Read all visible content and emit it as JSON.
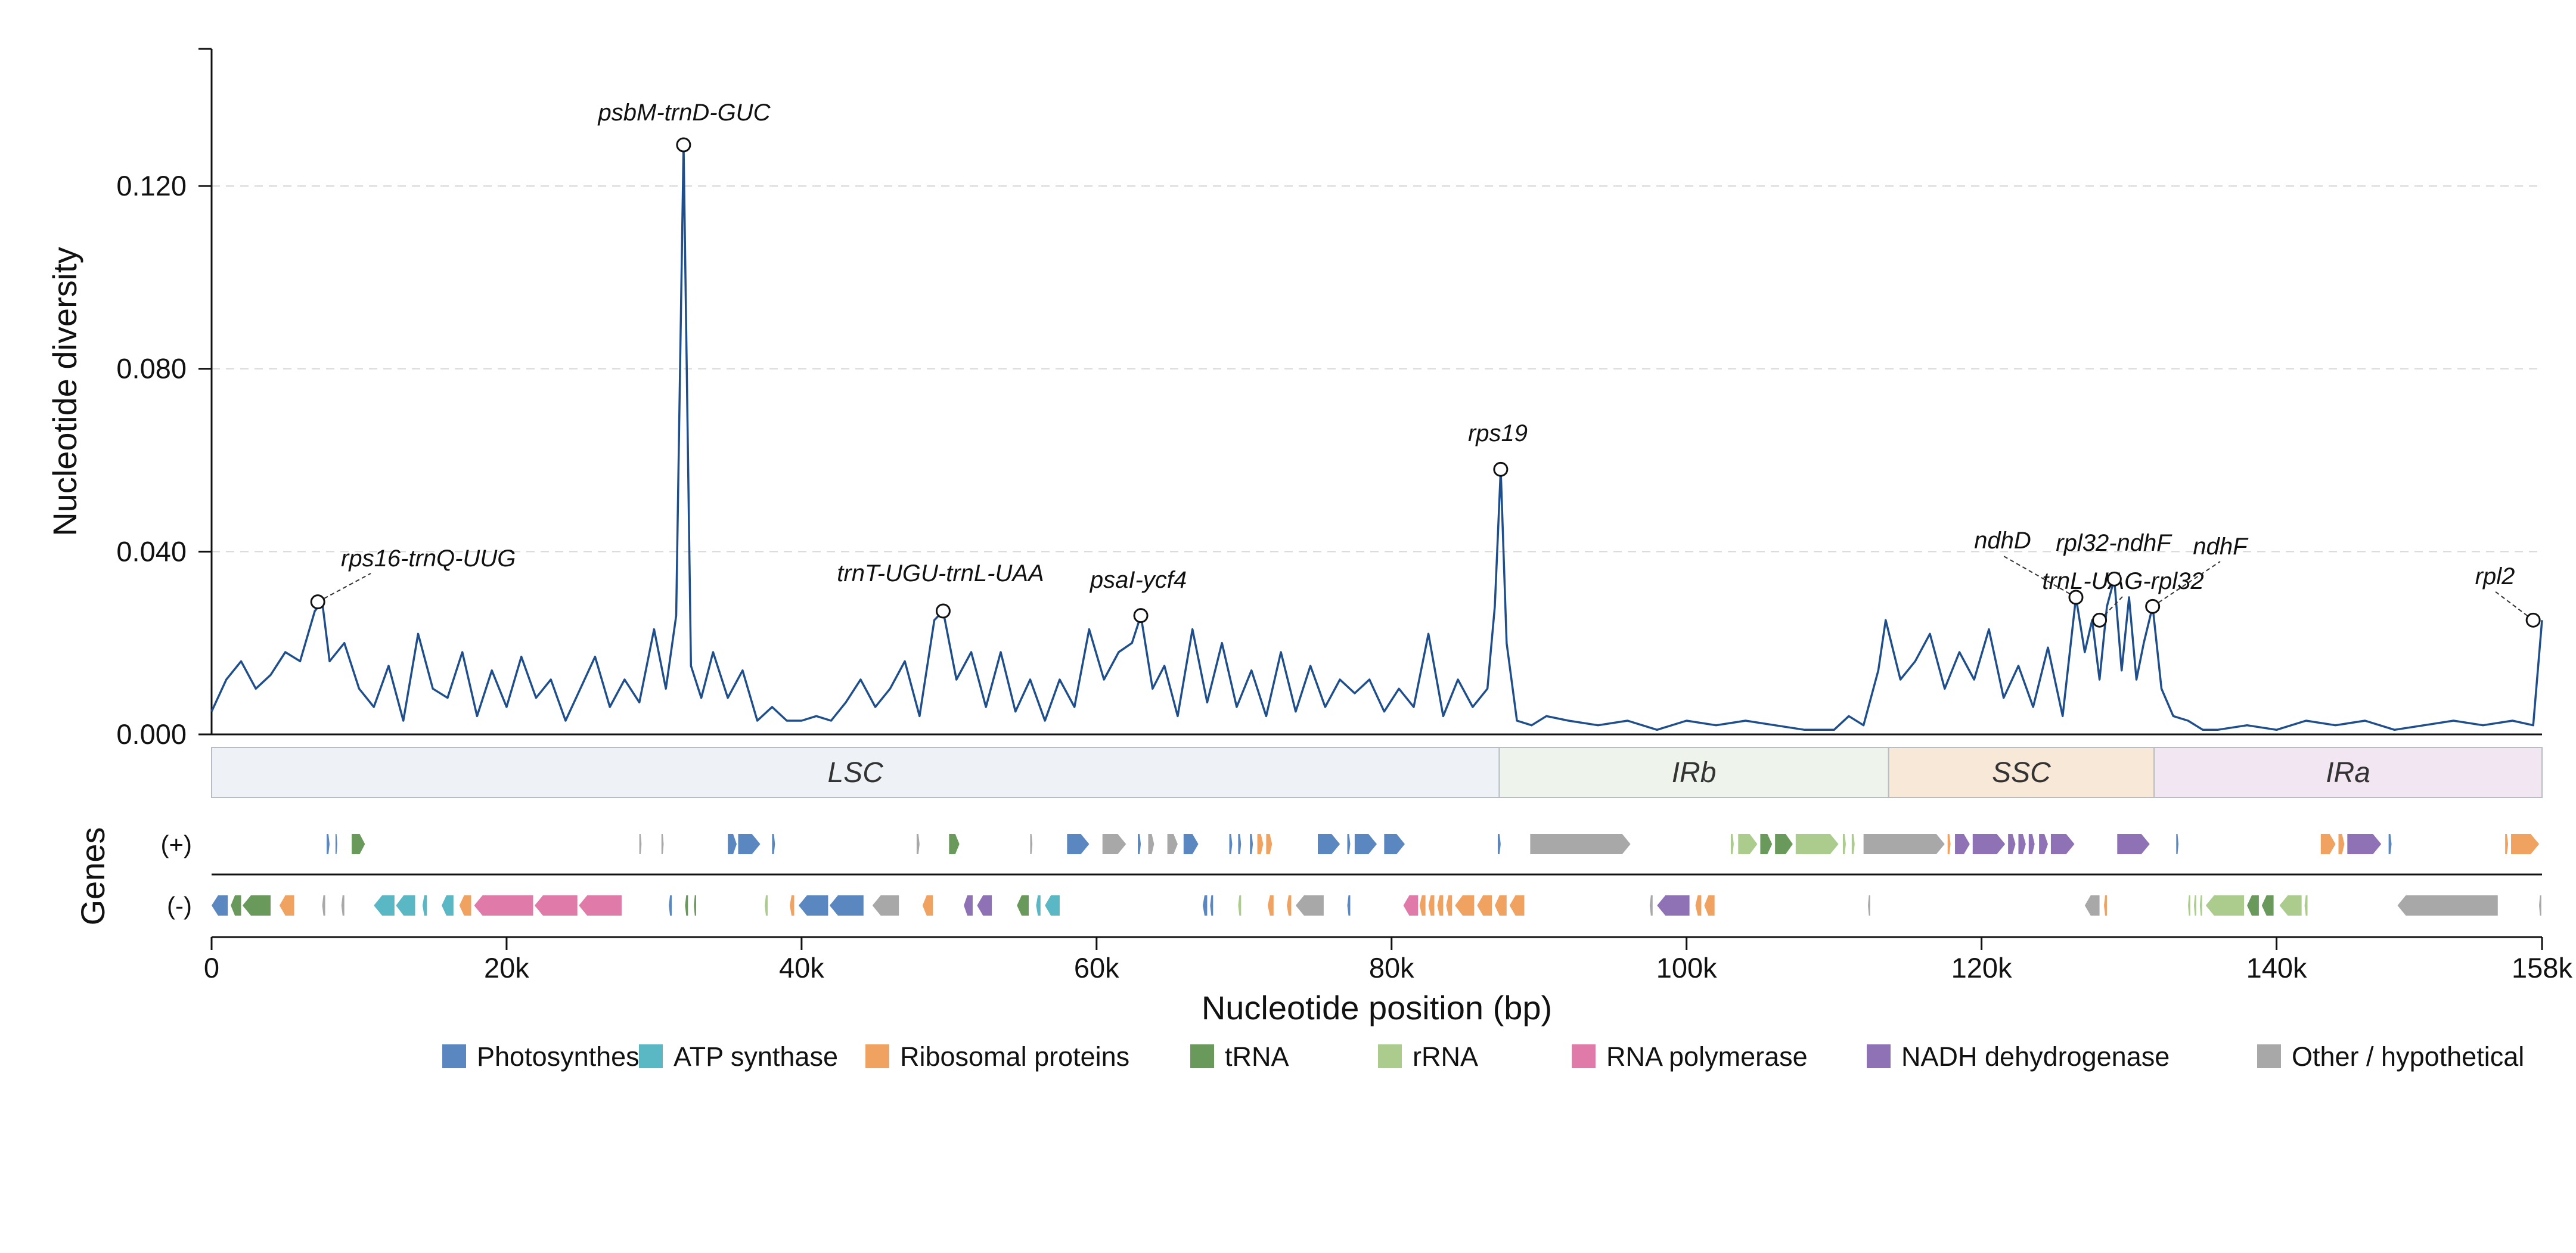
{
  "chart_data": {
    "type": "line",
    "xlabel": "Nucleotide position (bp)",
    "ylabel": "Nucleotide diversity",
    "genes_label": "Genes",
    "xlim": [
      0,
      158000
    ],
    "ylim": [
      0,
      0.15
    ],
    "y_ticks": [
      {
        "value": 0.0,
        "label": "0.000"
      },
      {
        "value": 0.04,
        "label": "0.040"
      },
      {
        "value": 0.08,
        "label": "0.080"
      },
      {
        "value": 0.12,
        "label": "0.120"
      }
    ],
    "x_ticks": [
      {
        "value": 0,
        "label": "0"
      },
      {
        "value": 20000,
        "label": "20k"
      },
      {
        "value": 40000,
        "label": "40k"
      },
      {
        "value": 60000,
        "label": "60k"
      },
      {
        "value": 80000,
        "label": "80k"
      },
      {
        "value": 100000,
        "label": "100k"
      },
      {
        "value": 120000,
        "label": "120k"
      },
      {
        "value": 140000,
        "label": "140k"
      },
      {
        "value": 158000,
        "label": "158k"
      }
    ],
    "grid": "horizontal-dashed",
    "line_color": "#1f4e8c",
    "series": [
      {
        "x": [
          0,
          1000,
          2000,
          3000,
          4000,
          5000,
          6000,
          7000,
          7500,
          8000,
          9000,
          10000,
          11000,
          12000,
          13000,
          14000,
          15000,
          16000,
          17000,
          18000,
          19000,
          20000,
          21000,
          22000,
          23000,
          24000,
          25000,
          26000,
          27000,
          28000,
          29000,
          30000,
          30800,
          31500,
          32000,
          32500,
          33200,
          34000,
          35000,
          36000,
          37000,
          38000,
          39000,
          40000,
          41000,
          42000,
          43000,
          44000,
          45000,
          46000,
          47000,
          48000,
          49000,
          49600,
          50500,
          51500,
          52500,
          53500,
          54500,
          55500,
          56500,
          57500,
          58500,
          59500,
          60500,
          61500,
          62400,
          63000,
          63800,
          64600,
          65500,
          66500,
          67500,
          68500,
          69500,
          70500,
          71500,
          72500,
          73500,
          74500,
          75500,
          76500,
          77500,
          78500,
          79500,
          80500,
          81500,
          82500,
          83500,
          84500,
          85500,
          86500,
          87000,
          87400,
          87800,
          88500,
          89500,
          90500,
          92000,
          94000,
          96000,
          98000,
          100000,
          102000,
          104000,
          106000,
          108000,
          110000,
          111000,
          112000,
          113000,
          113500,
          114500,
          115500,
          116500,
          117500,
          118500,
          119500,
          120500,
          121500,
          122500,
          123500,
          124500,
          125500,
          126400,
          127000,
          127500,
          128000,
          128500,
          129000,
          129500,
          130000,
          130500,
          131000,
          131600,
          132200,
          133000,
          134000,
          135000,
          136000,
          138000,
          140000,
          142000,
          144000,
          146000,
          148000,
          150000,
          152000,
          154000,
          156000,
          157400,
          158000
        ],
        "values": [
          0.005,
          0.012,
          0.016,
          0.01,
          0.013,
          0.018,
          0.016,
          0.027,
          0.029,
          0.016,
          0.02,
          0.01,
          0.006,
          0.015,
          0.003,
          0.022,
          0.01,
          0.008,
          0.018,
          0.004,
          0.014,
          0.006,
          0.017,
          0.008,
          0.012,
          0.003,
          0.01,
          0.017,
          0.006,
          0.012,
          0.007,
          0.023,
          0.01,
          0.026,
          0.129,
          0.015,
          0.008,
          0.018,
          0.008,
          0.014,
          0.003,
          0.006,
          0.003,
          0.003,
          0.004,
          0.003,
          0.007,
          0.012,
          0.006,
          0.01,
          0.016,
          0.004,
          0.025,
          0.027,
          0.012,
          0.018,
          0.006,
          0.018,
          0.005,
          0.012,
          0.003,
          0.012,
          0.006,
          0.023,
          0.012,
          0.018,
          0.02,
          0.026,
          0.01,
          0.015,
          0.004,
          0.023,
          0.007,
          0.02,
          0.006,
          0.014,
          0.004,
          0.018,
          0.005,
          0.015,
          0.006,
          0.012,
          0.009,
          0.012,
          0.005,
          0.01,
          0.006,
          0.022,
          0.004,
          0.012,
          0.006,
          0.01,
          0.028,
          0.058,
          0.02,
          0.003,
          0.002,
          0.004,
          0.003,
          0.002,
          0.003,
          0.001,
          0.003,
          0.002,
          0.003,
          0.002,
          0.001,
          0.001,
          0.004,
          0.002,
          0.014,
          0.025,
          0.012,
          0.016,
          0.022,
          0.01,
          0.018,
          0.012,
          0.023,
          0.008,
          0.015,
          0.006,
          0.019,
          0.004,
          0.03,
          0.018,
          0.025,
          0.012,
          0.028,
          0.034,
          0.014,
          0.03,
          0.012,
          0.02,
          0.028,
          0.01,
          0.004,
          0.003,
          0.001,
          0.001,
          0.002,
          0.001,
          0.003,
          0.002,
          0.003,
          0.001,
          0.002,
          0.003,
          0.002,
          0.003,
          0.002,
          0.025
        ]
      }
    ],
    "peaks": [
      {
        "label": "rps16-trnQ-UUG",
        "x": 7200,
        "y": 0.029
      },
      {
        "label": "psbM-trnD-GUC",
        "x": 32000,
        "y": 0.129
      },
      {
        "label": "trnT-UGU-trnL-UAA",
        "x": 49600,
        "y": 0.027
      },
      {
        "label": "psaI-ycf4",
        "x": 63000,
        "y": 0.026
      },
      {
        "label": "rps19",
        "x": 87400,
        "y": 0.058
      },
      {
        "label": "ndhD",
        "x": 126400,
        "y": 0.03
      },
      {
        "label": "trnL-UAG-rpl32",
        "x": 128000,
        "y": 0.025
      },
      {
        "label": "rpl32-ndhF",
        "x": 129000,
        "y": 0.034
      },
      {
        "label": "ndhF",
        "x": 131600,
        "y": 0.028
      },
      {
        "label": "rpl2",
        "x": 157400,
        "y": 0.025
      }
    ],
    "regions": [
      {
        "label": "LSC",
        "start": 0,
        "end": 87300,
        "color": "#eef2f6"
      },
      {
        "label": "IRb",
        "start": 87300,
        "end": 113700,
        "color": "#eef4ec"
      },
      {
        "label": "SSC",
        "start": 113700,
        "end": 131700,
        "color": "#f8e8d8"
      },
      {
        "label": "IRa",
        "start": 131700,
        "end": 158000,
        "color": "#f1e6f1"
      }
    ],
    "strands": [
      {
        "label": "(+)",
        "key": "plus"
      },
      {
        "label": "(-)",
        "key": "minus"
      }
    ],
    "legend": [
      {
        "label": "Photosynthesis",
        "color": "#5b87c0"
      },
      {
        "label": "ATP synthase",
        "color": "#5ab8c4"
      },
      {
        "label": "Ribosomal proteins",
        "color": "#f0a261"
      },
      {
        "label": "tRNA",
        "color": "#6a9a5b"
      },
      {
        "label": "rRNA",
        "color": "#abcc8c"
      },
      {
        "label": "RNA polymerase",
        "color": "#e07aa8"
      },
      {
        "label": "NADH dehydrogenase",
        "color": "#8e72b5"
      },
      {
        "label": "Other / hypothetical",
        "color": "#a8a8a8"
      }
    ],
    "genes": {
      "plus": [
        {
          "start": 7800,
          "end": 8000,
          "cat": 0
        },
        {
          "start": 8400,
          "end": 8500,
          "cat": 0
        },
        {
          "start": 9500,
          "end": 10400,
          "cat": 3
        },
        {
          "start": 29000,
          "end": 29150,
          "cat": 7
        },
        {
          "start": 30500,
          "end": 30650,
          "cat": 7
        },
        {
          "start": 35000,
          "end": 35600,
          "cat": 0
        },
        {
          "start": 35700,
          "end": 37200,
          "cat": 0
        },
        {
          "start": 38000,
          "end": 38200,
          "cat": 0
        },
        {
          "start": 47800,
          "end": 48000,
          "cat": 7
        },
        {
          "start": 50000,
          "end": 50700,
          "cat": 3
        },
        {
          "start": 55500,
          "end": 55650,
          "cat": 7
        },
        {
          "start": 58000,
          "end": 59500,
          "cat": 0
        },
        {
          "start": 60400,
          "end": 62000,
          "cat": 7
        },
        {
          "start": 62800,
          "end": 63000,
          "cat": 0
        },
        {
          "start": 63500,
          "end": 63900,
          "cat": 7
        },
        {
          "start": 64800,
          "end": 65500,
          "cat": 7
        },
        {
          "start": 65900,
          "end": 66900,
          "cat": 0
        },
        {
          "start": 69000,
          "end": 69200,
          "cat": 0
        },
        {
          "start": 69600,
          "end": 69800,
          "cat": 0
        },
        {
          "start": 70400,
          "end": 70600,
          "cat": 0
        },
        {
          "start": 70900,
          "end": 71300,
          "cat": 2
        },
        {
          "start": 71500,
          "end": 71900,
          "cat": 2
        },
        {
          "start": 75000,
          "end": 76500,
          "cat": 0
        },
        {
          "start": 77000,
          "end": 77200,
          "cat": 0
        },
        {
          "start": 77500,
          "end": 79000,
          "cat": 0
        },
        {
          "start": 79500,
          "end": 80900,
          "cat": 0
        },
        {
          "start": 87200,
          "end": 87400,
          "cat": 0
        },
        {
          "start": 89400,
          "end": 96200,
          "cat": 7
        },
        {
          "start": 103000,
          "end": 103200,
          "cat": 4
        },
        {
          "start": 103500,
          "end": 104800,
          "cat": 4
        },
        {
          "start": 105000,
          "end": 105800,
          "cat": 3
        },
        {
          "start": 106000,
          "end": 107200,
          "cat": 3
        },
        {
          "start": 107400,
          "end": 110300,
          "cat": 4
        },
        {
          "start": 110600,
          "end": 110800,
          "cat": 4
        },
        {
          "start": 111200,
          "end": 111400,
          "cat": 4
        },
        {
          "start": 112000,
          "end": 117500,
          "cat": 7
        },
        {
          "start": 117700,
          "end": 117900,
          "cat": 2
        },
        {
          "start": 118200,
          "end": 119200,
          "cat": 6
        },
        {
          "start": 119400,
          "end": 121600,
          "cat": 6
        },
        {
          "start": 121800,
          "end": 122300,
          "cat": 6
        },
        {
          "start": 122500,
          "end": 123000,
          "cat": 6
        },
        {
          "start": 123200,
          "end": 123600,
          "cat": 6
        },
        {
          "start": 123900,
          "end": 124500,
          "cat": 6
        },
        {
          "start": 124700,
          "end": 126300,
          "cat": 6
        },
        {
          "start": 129200,
          "end": 131400,
          "cat": 6
        },
        {
          "start": 133200,
          "end": 133350,
          "cat": 0
        },
        {
          "start": 143000,
          "end": 144000,
          "cat": 2
        },
        {
          "start": 144200,
          "end": 144600,
          "cat": 2
        },
        {
          "start": 144800,
          "end": 147100,
          "cat": 6
        },
        {
          "start": 147600,
          "end": 147800,
          "cat": 0
        },
        {
          "start": 155500,
          "end": 155700,
          "cat": 2
        },
        {
          "start": 155900,
          "end": 157800,
          "cat": 2
        }
      ],
      "minus": [
        {
          "start": 0,
          "end": 1100,
          "cat": 0
        },
        {
          "start": 1300,
          "end": 2000,
          "cat": 3
        },
        {
          "start": 2100,
          "end": 4000,
          "cat": 3
        },
        {
          "start": 4600,
          "end": 5600,
          "cat": 2
        },
        {
          "start": 7500,
          "end": 7700,
          "cat": 7
        },
        {
          "start": 8800,
          "end": 9000,
          "cat": 7
        },
        {
          "start": 11000,
          "end": 12400,
          "cat": 1
        },
        {
          "start": 12500,
          "end": 13800,
          "cat": 1
        },
        {
          "start": 14300,
          "end": 14600,
          "cat": 1
        },
        {
          "start": 15600,
          "end": 16400,
          "cat": 1
        },
        {
          "start": 16800,
          "end": 17600,
          "cat": 2
        },
        {
          "start": 17800,
          "end": 21800,
          "cat": 5
        },
        {
          "start": 21900,
          "end": 24800,
          "cat": 5
        },
        {
          "start": 24900,
          "end": 27800,
          "cat": 5
        },
        {
          "start": 31000,
          "end": 31200,
          "cat": 0
        },
        {
          "start": 32100,
          "end": 32300,
          "cat": 3
        },
        {
          "start": 32700,
          "end": 32850,
          "cat": 3
        },
        {
          "start": 37500,
          "end": 37700,
          "cat": 4
        },
        {
          "start": 39200,
          "end": 39500,
          "cat": 2
        },
        {
          "start": 39800,
          "end": 41800,
          "cat": 0
        },
        {
          "start": 41900,
          "end": 44200,
          "cat": 0
        },
        {
          "start": 44800,
          "end": 46600,
          "cat": 7
        },
        {
          "start": 48200,
          "end": 48900,
          "cat": 2
        },
        {
          "start": 51000,
          "end": 51600,
          "cat": 6
        },
        {
          "start": 51900,
          "end": 52900,
          "cat": 6
        },
        {
          "start": 54600,
          "end": 55400,
          "cat": 3
        },
        {
          "start": 55900,
          "end": 56200,
          "cat": 1
        },
        {
          "start": 56500,
          "end": 57500,
          "cat": 1
        },
        {
          "start": 67200,
          "end": 67500,
          "cat": 0
        },
        {
          "start": 67700,
          "end": 67900,
          "cat": 0
        },
        {
          "start": 69600,
          "end": 69800,
          "cat": 4
        },
        {
          "start": 71600,
          "end": 72000,
          "cat": 2
        },
        {
          "start": 72900,
          "end": 73200,
          "cat": 2
        },
        {
          "start": 73500,
          "end": 75400,
          "cat": 7
        },
        {
          "start": 77000,
          "end": 77200,
          "cat": 0
        },
        {
          "start": 80800,
          "end": 81800,
          "cat": 5
        },
        {
          "start": 81900,
          "end": 82300,
          "cat": 2
        },
        {
          "start": 82500,
          "end": 82900,
          "cat": 2
        },
        {
          "start": 83100,
          "end": 83500,
          "cat": 2
        },
        {
          "start": 83700,
          "end": 84100,
          "cat": 2
        },
        {
          "start": 84300,
          "end": 85600,
          "cat": 2
        },
        {
          "start": 85800,
          "end": 86800,
          "cat": 2
        },
        {
          "start": 87000,
          "end": 87800,
          "cat": 2
        },
        {
          "start": 88000,
          "end": 89000,
          "cat": 2
        },
        {
          "start": 97500,
          "end": 97700,
          "cat": 7
        },
        {
          "start": 98000,
          "end": 100200,
          "cat": 6
        },
        {
          "start": 100600,
          "end": 101000,
          "cat": 2
        },
        {
          "start": 101200,
          "end": 101900,
          "cat": 2
        },
        {
          "start": 112300,
          "end": 112450,
          "cat": 7
        },
        {
          "start": 127000,
          "end": 128000,
          "cat": 7
        },
        {
          "start": 128300,
          "end": 128500,
          "cat": 2
        },
        {
          "start": 134000,
          "end": 134150,
          "cat": 4
        },
        {
          "start": 134400,
          "end": 134550,
          "cat": 4
        },
        {
          "start": 134800,
          "end": 134950,
          "cat": 4
        },
        {
          "start": 135200,
          "end": 137800,
          "cat": 4
        },
        {
          "start": 138000,
          "end": 138800,
          "cat": 3
        },
        {
          "start": 139000,
          "end": 139800,
          "cat": 3
        },
        {
          "start": 140200,
          "end": 141700,
          "cat": 4
        },
        {
          "start": 141900,
          "end": 142100,
          "cat": 4
        },
        {
          "start": 148200,
          "end": 155000,
          "cat": 7
        },
        {
          "start": 157800,
          "end": 157950,
          "cat": 7
        }
      ]
    }
  }
}
